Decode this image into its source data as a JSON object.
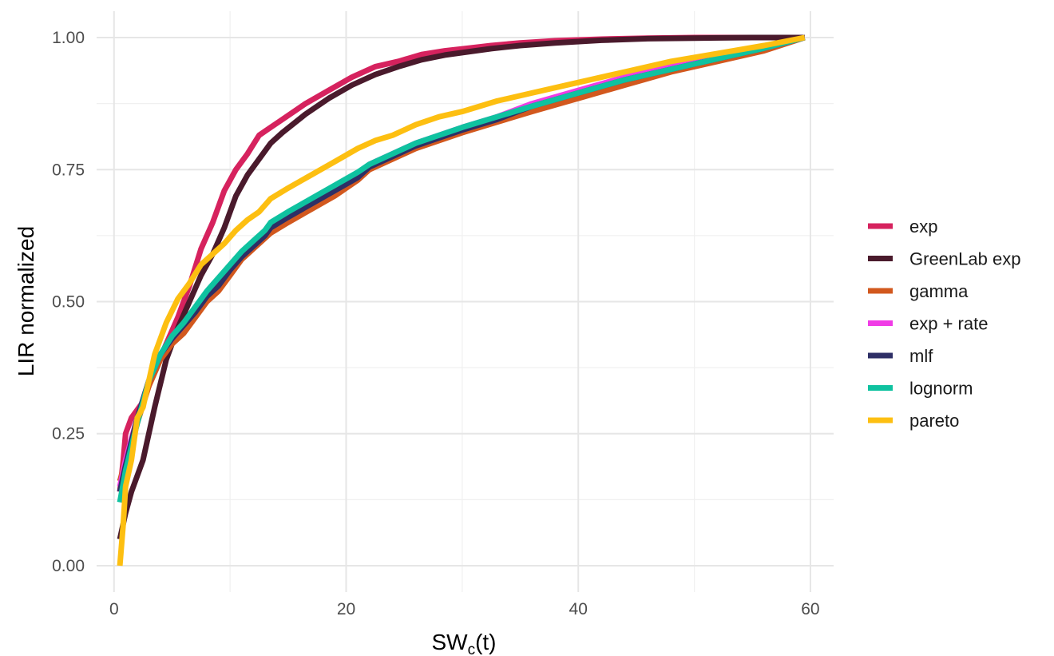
{
  "chart_data": {
    "type": "line",
    "title": "",
    "xlabel_main": "SW",
    "xlabel_sub": "c",
    "xlabel_suffix": "(t)",
    "ylabel": "LIR normalized",
    "xlim": [
      -1.5,
      62
    ],
    "ylim": [
      -0.05,
      1.05
    ],
    "x_ticks": [
      0,
      20,
      40,
      60
    ],
    "x_tick_labels": [
      "0",
      "20",
      "40",
      "60"
    ],
    "y_ticks": [
      0,
      0.25,
      0.5,
      0.75,
      1.0
    ],
    "y_tick_labels": [
      "0.00",
      "0.25",
      "0.50",
      "0.75",
      "1.00"
    ],
    "grid": true,
    "legend_position": "right",
    "series": [
      {
        "name": "exp",
        "color": "#D6225E",
        "x": [
          0.5,
          0.8,
          1.0,
          1.5,
          2.5,
          3.5,
          4.5,
          5.5,
          6.5,
          7.5,
          8.5,
          9.5,
          10.5,
          11.5,
          12.5,
          13.5,
          14.5,
          16.5,
          18.5,
          20.5,
          22.5,
          24.5,
          26.5,
          28.5,
          30.5,
          32.5,
          35,
          38,
          42,
          46,
          50,
          55,
          59.5
        ],
        "y": [
          0.14,
          0.2,
          0.25,
          0.28,
          0.31,
          0.37,
          0.42,
          0.47,
          0.53,
          0.6,
          0.65,
          0.71,
          0.75,
          0.78,
          0.815,
          0.83,
          0.845,
          0.875,
          0.9,
          0.925,
          0.945,
          0.955,
          0.968,
          0.975,
          0.98,
          0.985,
          0.99,
          0.994,
          0.997,
          0.999,
          1.0,
          1.0,
          1.0
        ]
      },
      {
        "name": "GreenLab exp",
        "color": "#4A1A2C",
        "x": [
          0.5,
          1.0,
          1.5,
          2.5,
          3.5,
          4.5,
          5.5,
          6.5,
          7.5,
          8.5,
          9.5,
          10.5,
          11.5,
          12.5,
          13.5,
          14.5,
          16.5,
          18.5,
          20.5,
          22.5,
          24.5,
          26.5,
          28.5,
          30.5,
          32.5,
          35,
          38,
          42,
          46,
          50,
          55,
          59.5
        ],
        "y": [
          0.05,
          0.1,
          0.14,
          0.2,
          0.3,
          0.39,
          0.45,
          0.5,
          0.55,
          0.59,
          0.64,
          0.7,
          0.74,
          0.77,
          0.8,
          0.82,
          0.855,
          0.885,
          0.91,
          0.93,
          0.945,
          0.958,
          0.967,
          0.973,
          0.979,
          0.985,
          0.99,
          0.995,
          0.998,
          0.999,
          1.0,
          1.0
        ]
      },
      {
        "name": "gamma",
        "color": "#D2581E",
        "x": [
          0.5,
          1.0,
          2.0,
          3.0,
          4.0,
          5.0,
          6.0,
          7.0,
          8.0,
          9.0,
          10.0,
          11.0,
          12.0,
          13.0,
          13.5,
          15.0,
          17.0,
          19.0,
          21.0,
          22.0,
          24.0,
          26.0,
          28.0,
          30.0,
          33.0,
          36.0,
          40.0,
          44.0,
          48.0,
          52.0,
          56.0,
          59.5
        ],
        "y": [
          0.16,
          0.2,
          0.27,
          0.34,
          0.39,
          0.42,
          0.44,
          0.47,
          0.5,
          0.52,
          0.55,
          0.58,
          0.6,
          0.62,
          0.63,
          0.65,
          0.675,
          0.7,
          0.73,
          0.75,
          0.77,
          0.79,
          0.805,
          0.82,
          0.84,
          0.86,
          0.885,
          0.91,
          0.935,
          0.955,
          0.975,
          1.0
        ]
      },
      {
        "name": "exp + rate",
        "color": "#F03CE6",
        "x": [
          0.5,
          1.0,
          2.0,
          3.0,
          4.0,
          5.0,
          6.0,
          7.0,
          8.0,
          9.0,
          10.0,
          11.0,
          12.0,
          13.0,
          13.5,
          15.0,
          17.0,
          19.0,
          21.0,
          22.0,
          24.0,
          26.0,
          28.0,
          30.0,
          33.0,
          36.0,
          40.0,
          44.0,
          48.0,
          52.0,
          56.0,
          59.5
        ],
        "y": [
          0.15,
          0.2,
          0.28,
          0.35,
          0.4,
          0.43,
          0.455,
          0.485,
          0.515,
          0.535,
          0.565,
          0.59,
          0.61,
          0.63,
          0.645,
          0.665,
          0.69,
          0.715,
          0.74,
          0.76,
          0.78,
          0.8,
          0.815,
          0.83,
          0.85,
          0.875,
          0.9,
          0.925,
          0.945,
          0.965,
          0.98,
          1.0
        ]
      },
      {
        "name": "mlf",
        "color": "#2E2F66",
        "x": [
          0.5,
          1.0,
          2.0,
          3.0,
          4.0,
          5.0,
          6.0,
          7.0,
          8.0,
          9.0,
          10.0,
          11.0,
          12.0,
          13.0,
          13.5,
          15.0,
          17.0,
          19.0,
          21.0,
          22.0,
          24.0,
          26.0,
          28.0,
          30.0,
          33.0,
          36.0,
          40.0,
          44.0,
          48.0,
          52.0,
          56.0,
          59.5
        ],
        "y": [
          0.14,
          0.19,
          0.28,
          0.35,
          0.4,
          0.43,
          0.455,
          0.48,
          0.51,
          0.53,
          0.56,
          0.585,
          0.605,
          0.625,
          0.64,
          0.66,
          0.685,
          0.71,
          0.735,
          0.755,
          0.775,
          0.795,
          0.81,
          0.825,
          0.845,
          0.87,
          0.895,
          0.92,
          0.94,
          0.96,
          0.98,
          1.0
        ]
      },
      {
        "name": "lognorm",
        "color": "#0FC2A0",
        "x": [
          0.5,
          1.0,
          2.0,
          3.0,
          4.0,
          5.0,
          6.0,
          7.0,
          8.0,
          9.0,
          10.0,
          11.0,
          12.0,
          13.0,
          13.5,
          15.0,
          17.0,
          19.0,
          21.0,
          22.0,
          24.0,
          26.0,
          28.0,
          30.0,
          33.0,
          36.0,
          40.0,
          44.0,
          48.0,
          52.0,
          56.0,
          59.5
        ],
        "y": [
          0.12,
          0.18,
          0.27,
          0.35,
          0.4,
          0.435,
          0.46,
          0.49,
          0.52,
          0.545,
          0.57,
          0.595,
          0.615,
          0.635,
          0.65,
          0.67,
          0.695,
          0.72,
          0.745,
          0.76,
          0.78,
          0.8,
          0.815,
          0.83,
          0.85,
          0.87,
          0.895,
          0.92,
          0.94,
          0.96,
          0.98,
          1.0
        ]
      },
      {
        "name": "pareto",
        "color": "#FDBF11",
        "x": [
          0.5,
          0.8,
          1.0,
          1.5,
          2.0,
          2.5,
          3.5,
          4.5,
          5.5,
          6.5,
          7.5,
          8.5,
          9.5,
          10.5,
          11.5,
          12.5,
          13.5,
          15.0,
          17.0,
          19.0,
          21.0,
          22.5,
          24.0,
          26.0,
          28.0,
          30.0,
          33.0,
          36.0,
          40.0,
          44.0,
          48.0,
          52.0,
          56.0,
          59.5
        ],
        "y": [
          0.0,
          0.08,
          0.15,
          0.2,
          0.28,
          0.3,
          0.4,
          0.46,
          0.505,
          0.535,
          0.57,
          0.59,
          0.61,
          0.635,
          0.655,
          0.67,
          0.695,
          0.715,
          0.74,
          0.765,
          0.79,
          0.805,
          0.815,
          0.835,
          0.85,
          0.86,
          0.88,
          0.895,
          0.915,
          0.935,
          0.955,
          0.97,
          0.985,
          1.0
        ]
      }
    ]
  }
}
